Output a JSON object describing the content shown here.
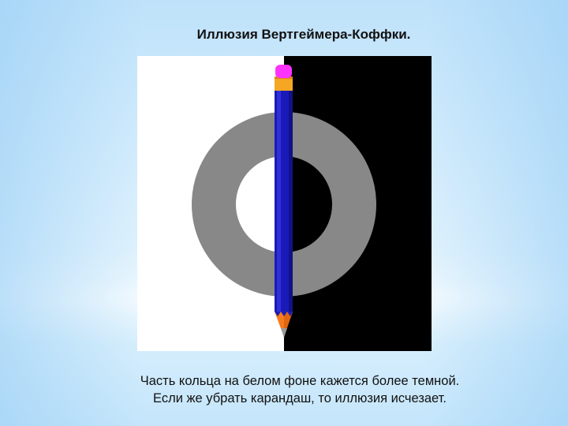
{
  "slide": {
    "title": "Иллюзия Вертгеймера-Коффки.",
    "caption_line1": "Часть кольца на белом фоне кажется более темной.",
    "caption_line2": "Если же убрать карандаш, то иллюзия исчезает."
  },
  "illustration": {
    "left_background_color": "#ffffff",
    "right_background_color": "#000000",
    "ring_color": "#888888",
    "pencil_body_color": "#1a1ab8",
    "pencil_eraser_color": "#ff33ff",
    "pencil_ferrule_color": "#f5a623",
    "pencil_tip_color": "#f57c1f"
  }
}
